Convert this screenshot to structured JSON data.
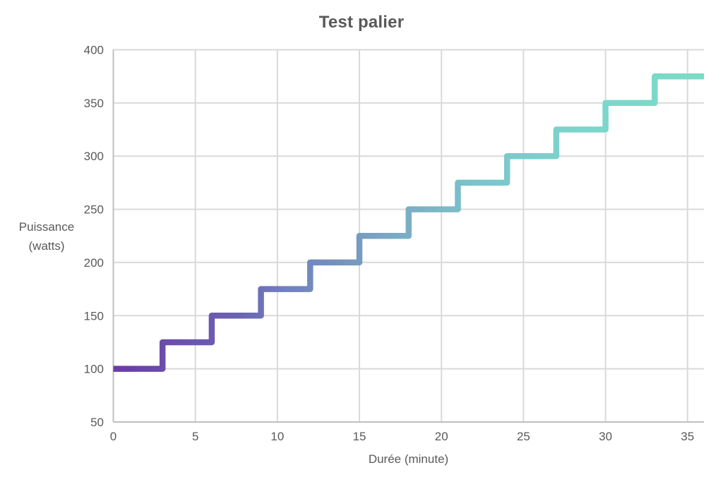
{
  "chart": {
    "title": "Test palier",
    "xlabel": "Durée (minute)",
    "ylabel_line1": "Puissance",
    "ylabel_line2": "(watts)"
  },
  "chart_data": {
    "type": "line",
    "subtype": "step",
    "title": "Test palier",
    "xlabel": "Durée (minute)",
    "ylabel": "Puissance (watts)",
    "xlim": [
      0,
      36
    ],
    "ylim": [
      50,
      400
    ],
    "x_ticks": [
      0,
      5,
      10,
      15,
      20,
      25,
      30,
      35
    ],
    "y_ticks": [
      50,
      100,
      150,
      200,
      250,
      300,
      350,
      400
    ],
    "grid": true,
    "legend": "none",
    "step_duration_minutes": 3,
    "step_increment_watts": 25,
    "steps": [
      {
        "t_start": 0,
        "t_end": 3,
        "watts": 100
      },
      {
        "t_start": 3,
        "t_end": 6,
        "watts": 125
      },
      {
        "t_start": 6,
        "t_end": 9,
        "watts": 150
      },
      {
        "t_start": 9,
        "t_end": 12,
        "watts": 175
      },
      {
        "t_start": 12,
        "t_end": 15,
        "watts": 200
      },
      {
        "t_start": 15,
        "t_end": 18,
        "watts": 225
      },
      {
        "t_start": 18,
        "t_end": 21,
        "watts": 250
      },
      {
        "t_start": 21,
        "t_end": 24,
        "watts": 275
      },
      {
        "t_start": 24,
        "t_end": 27,
        "watts": 300
      },
      {
        "t_start": 27,
        "t_end": 30,
        "watts": 325
      },
      {
        "t_start": 30,
        "t_end": 33,
        "watts": 350
      },
      {
        "t_start": 33,
        "t_end": 36,
        "watts": 375
      }
    ],
    "line_gradient": [
      {
        "offset": "0%",
        "color": "#6B3AA4"
      },
      {
        "offset": "10%",
        "color": "#6B4FAC"
      },
      {
        "offset": "21%",
        "color": "#6B62B2"
      },
      {
        "offset": "29%",
        "color": "#7080C0"
      },
      {
        "offset": "38%",
        "color": "#7492BC"
      },
      {
        "offset": "46%",
        "color": "#7BA7C2"
      },
      {
        "offset": "62%",
        "color": "#7BC4CC"
      },
      {
        "offset": "79%",
        "color": "#7DD5CC"
      },
      {
        "offset": "100%",
        "color": "#79DCC6"
      }
    ],
    "colors": {
      "grid": "#D9D9D9",
      "axis": "#BFBFBF",
      "text": "#595959",
      "background": "#FFFFFF"
    }
  }
}
